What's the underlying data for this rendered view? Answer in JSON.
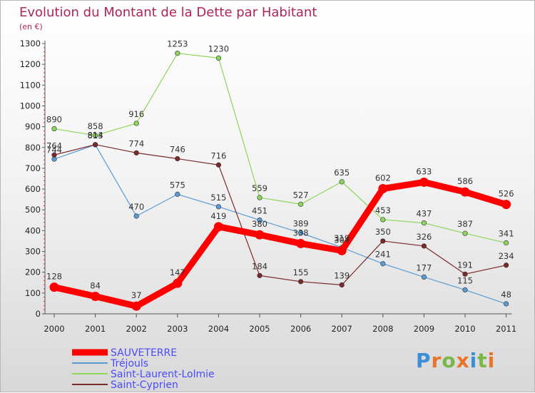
{
  "chart_data": {
    "type": "line",
    "title": "Evolution du Montant de la Dette par Habitant",
    "subtitle": "(en €)",
    "xlabel": "",
    "ylabel": "",
    "x": [
      "2000",
      "2001",
      "2002",
      "2003",
      "2004",
      "2005",
      "2006",
      "2007",
      "2008",
      "2009",
      "2010",
      "2011"
    ],
    "ylim": [
      0,
      1300
    ],
    "yticks": [
      0,
      100,
      200,
      300,
      400,
      500,
      600,
      700,
      800,
      900,
      1000,
      1100,
      1200,
      1300
    ],
    "grid": false,
    "legend_position": "bottom-left",
    "series": [
      {
        "name": "SAUVETERRE",
        "color": "#ff0000",
        "bold": true,
        "values": [
          128,
          84,
          37,
          147,
          419,
          380,
          338,
          304,
          602,
          633,
          586,
          526
        ]
      },
      {
        "name": "Tréjouls",
        "color": "#5b9bd5",
        "bold": false,
        "values": [
          744,
          813,
          470,
          575,
          515,
          451,
          389,
          319,
          241,
          177,
          115,
          48
        ]
      },
      {
        "name": "Saint-Laurent-Lolmie",
        "color": "#8cd65a",
        "bold": false,
        "values": [
          890,
          858,
          916,
          1253,
          1230,
          559,
          527,
          635,
          453,
          437,
          387,
          341
        ]
      },
      {
        "name": "Saint-Cyprien",
        "color": "#7a2a2a",
        "bold": false,
        "values": [
          764,
          814,
          774,
          746,
          716,
          184,
          155,
          139,
          350,
          326,
          191,
          234
        ]
      }
    ]
  },
  "logo": {
    "letters": [
      "P",
      "r",
      "o",
      "x",
      "i",
      "t",
      "i"
    ],
    "colors": [
      "#3a8fd6",
      "#e8742a",
      "#7ab648",
      "#e8742a",
      "#3a8fd6",
      "#7ab648",
      "#e8742a"
    ]
  }
}
